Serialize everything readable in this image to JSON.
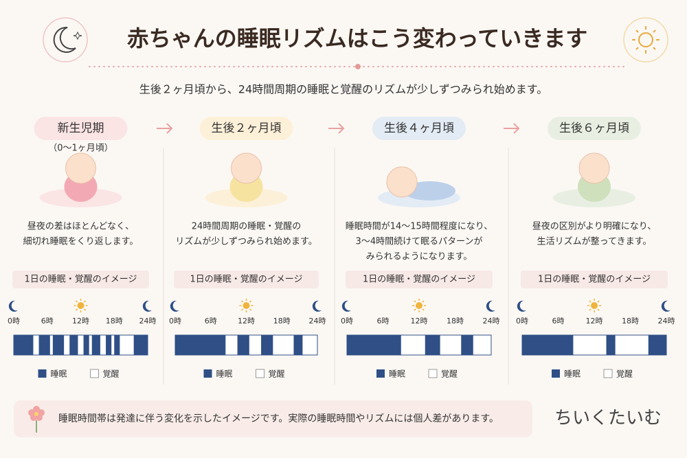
{
  "header": {
    "title": "赤ちゃんの睡眠リズムはこう変わっていきます",
    "subtitle": "生後２ヶ月頃から、24時間周期の睡眠と覚醒のリズムが少しずつみられ始めます。"
  },
  "panels": [
    {
      "title": "新生児期",
      "subtitle": "（0〜1ヶ月頃）",
      "description": [
        "昼夜の差はほとんどなく、",
        "細切れ睡眠をくり返します。"
      ],
      "chart_label": "1日の睡眠・覚醒のイメージ",
      "sleep": [
        [
          0,
          3.5
        ],
        [
          4.5,
          6.5
        ],
        [
          7,
          9
        ],
        [
          10,
          11.5
        ],
        [
          12.5,
          13.5
        ],
        [
          14,
          15.5
        ],
        [
          16.5,
          17.5
        ],
        [
          18,
          19
        ],
        [
          21.5,
          24
        ]
      ]
    },
    {
      "title": "生後２ヶ月頃",
      "description": [
        "24時間周期の睡眠・覚醒の",
        "リズムが少しずつみられ始めます。"
      ],
      "chart_label": "1日の睡眠・覚醒のイメージ",
      "sleep": [
        [
          0,
          8.5
        ],
        [
          10.5,
          12.5
        ],
        [
          14.5,
          16.5
        ],
        [
          20,
          21.5
        ]
      ]
    },
    {
      "title": "生後４ヶ月頃",
      "description": [
        "睡眠時間が14〜15時間程度になり、",
        "3〜4時間続けて眠るパターンが",
        "みられるようになります。"
      ],
      "chart_label": "1日の睡眠・覚醒のイメージ",
      "sleep": [
        [
          0,
          9
        ],
        [
          13,
          15.5
        ],
        [
          19,
          21
        ]
      ]
    },
    {
      "title": "生後６ヶ月頃",
      "description": [
        "昼夜の区別がより明確になり、",
        "生活リズムが整ってきます。"
      ],
      "chart_label": "1日の睡眠・覚醒のイメージ",
      "sleep": [
        [
          0,
          8.5
        ],
        [
          14,
          15.5
        ],
        [
          21,
          24
        ]
      ]
    }
  ],
  "timeline": {
    "range": [
      0,
      24
    ],
    "ticks": [
      {
        "value": 0,
        "label": "0時"
      },
      {
        "value": 6,
        "label": "6時"
      },
      {
        "value": 12,
        "label": "12時"
      },
      {
        "value": 18,
        "label": "18時"
      },
      {
        "value": 24,
        "label": "24時"
      }
    ]
  },
  "legend": {
    "sleep": "睡眠",
    "awake": "覚醒"
  },
  "footer": {
    "note": "睡眠時間帯は発達に伴う変化を示したイメージです。実際の睡眠時間やリズムには個人差があります。",
    "logo": "ちいくたいむ"
  }
}
